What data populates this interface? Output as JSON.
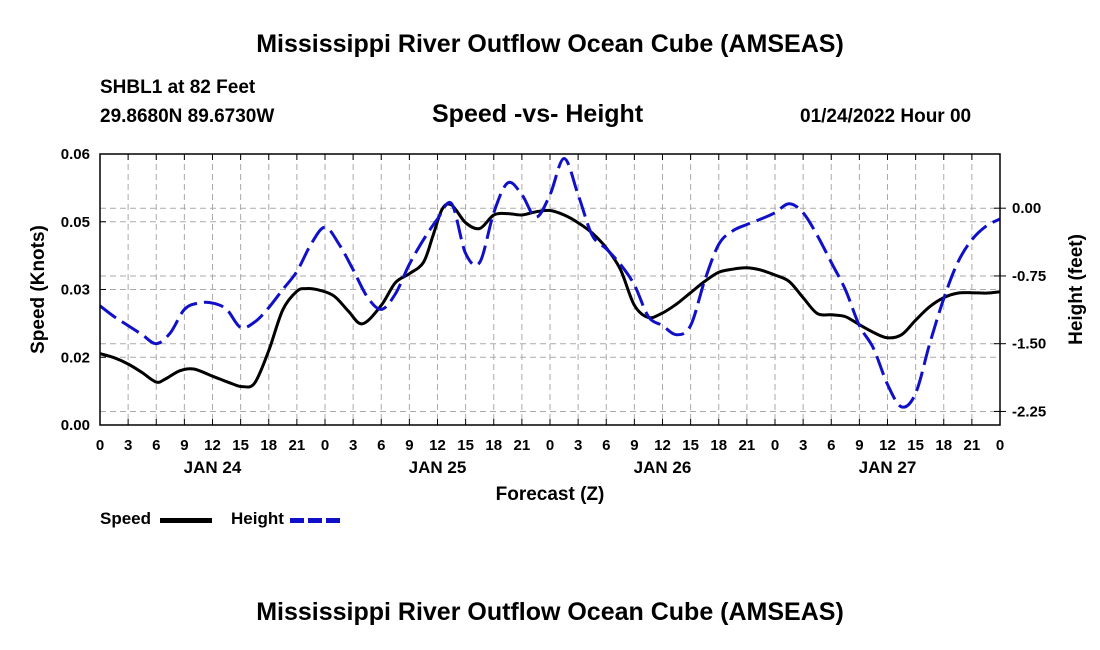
{
  "chart_data": {
    "type": "line",
    "title": "Mississippi River Outflow Ocean Cube (AMSEAS)",
    "station": "SHBL1 at 82 Feet",
    "coordinates": "29.8680N  89.6730W",
    "subtitle": "Speed -vs- Height",
    "datetime": "01/24/2022 Hour 00",
    "xlabel": "Forecast (Z)",
    "ylabel_left": "Speed (Knots)",
    "ylabel_right": "Height (feet)",
    "x_hours": [
      0,
      96
    ],
    "x_ticks": [
      "0",
      "3",
      "6",
      "9",
      "12",
      "15",
      "18",
      "21",
      "0",
      "3",
      "6",
      "9",
      "12",
      "15",
      "18",
      "21",
      "0",
      "3",
      "6",
      "9",
      "12",
      "15",
      "18",
      "21",
      "0",
      "3",
      "6",
      "9",
      "12",
      "15",
      "18",
      "21",
      "0"
    ],
    "day_labels": [
      {
        "label": "JAN 24",
        "hour": 12
      },
      {
        "label": "JAN 25",
        "hour": 36
      },
      {
        "label": "JAN 26",
        "hour": 60
      },
      {
        "label": "JAN 27",
        "hour": 84
      }
    ],
    "y_left": {
      "min": 0,
      "max": 0.06,
      "ticks": [
        "0.00",
        "0.02",
        "0.03",
        "0.05",
        "0.06"
      ]
    },
    "y_right": {
      "min": -2.4,
      "max": 0.6,
      "ticks": [
        "0.00",
        "-0.75",
        "-1.50",
        "-2.25"
      ],
      "tick_values": [
        0,
        -0.75,
        -1.5,
        -2.25
      ]
    },
    "grid": true,
    "series": [
      {
        "name": "Speed",
        "axis": "left",
        "color": "#000000",
        "style": "solid",
        "x": [
          0,
          1.5,
          3,
          4.5,
          6,
          7,
          8.5,
          10,
          12,
          14,
          15.2,
          16.5,
          18,
          19.5,
          21,
          22,
          23.5,
          25,
          26.5,
          28,
          30,
          31.5,
          33,
          34.5,
          35.5,
          36.5,
          37.5,
          39,
          40.5,
          42,
          43.5,
          45,
          46.5,
          48,
          49.5,
          51,
          52.5,
          54,
          55.5,
          57,
          58.5,
          60,
          61.5,
          63,
          64.5,
          66,
          67.5,
          69,
          70.5,
          72,
          73.5,
          75,
          76.5,
          78,
          79.5,
          81,
          82.5,
          84,
          85.5,
          87,
          88.5,
          90,
          91.5,
          93,
          94.5,
          96
        ],
        "values": [
          0.0158,
          0.0149,
          0.0135,
          0.0116,
          0.0095,
          0.0102,
          0.012,
          0.0124,
          0.0108,
          0.0092,
          0.0085,
          0.0093,
          0.0165,
          0.0255,
          0.0296,
          0.0302,
          0.0298,
          0.0285,
          0.0252,
          0.0224,
          0.0265,
          0.0315,
          0.0335,
          0.036,
          0.0418,
          0.0478,
          0.0487,
          0.0448,
          0.0435,
          0.0465,
          0.0468,
          0.0465,
          0.0472,
          0.0475,
          0.0465,
          0.0448,
          0.0425,
          0.0392,
          0.0345,
          0.0265,
          0.0238,
          0.0248,
          0.0268,
          0.0293,
          0.0318,
          0.0338,
          0.0345,
          0.0348,
          0.0343,
          0.0332,
          0.0318,
          0.0282,
          0.0247,
          0.0244,
          0.024,
          0.0222,
          0.0205,
          0.0193,
          0.02,
          0.0232,
          0.0262,
          0.0282,
          0.0292,
          0.0293,
          0.0292,
          0.0295
        ]
      },
      {
        "name": "Height",
        "axis": "right",
        "color": "#1010c8",
        "style": "dashed",
        "x": [
          0,
          1.5,
          3,
          4.5,
          6,
          7.5,
          9,
          10.5,
          12,
          13.5,
          15,
          16.5,
          18,
          19.5,
          21,
          22.5,
          24,
          25.5,
          27,
          28.5,
          30,
          31.5,
          33,
          34.5,
          36,
          37.5,
          39,
          40.5,
          42,
          43.5,
          45,
          46.5,
          48,
          49.5,
          51,
          52.5,
          54,
          55.5,
          57,
          58.5,
          60,
          61.5,
          63,
          64.5,
          66,
          67.5,
          69,
          70.5,
          72,
          73.5,
          75,
          76.5,
          78,
          79.5,
          81,
          82.5,
          84,
          85.5,
          87,
          88.5,
          90,
          91.5,
          93,
          94.5,
          96
        ],
        "values": [
          -1.08,
          -1.2,
          -1.3,
          -1.4,
          -1.5,
          -1.38,
          -1.12,
          -1.05,
          -1.05,
          -1.12,
          -1.32,
          -1.26,
          -1.1,
          -0.9,
          -0.7,
          -0.4,
          -0.21,
          -0.4,
          -0.68,
          -0.98,
          -1.12,
          -0.95,
          -0.62,
          -0.35,
          -0.12,
          0.05,
          -0.5,
          -0.6,
          -0.05,
          0.28,
          0.15,
          -0.1,
          0.15,
          0.55,
          0.15,
          -0.3,
          -0.45,
          -0.62,
          -0.85,
          -1.2,
          -1.3,
          -1.4,
          -1.3,
          -0.8,
          -0.4,
          -0.25,
          -0.18,
          -0.12,
          -0.05,
          0.05,
          -0.05,
          -0.3,
          -0.6,
          -0.9,
          -1.3,
          -1.55,
          -1.95,
          -2.2,
          -2.05,
          -1.5,
          -1.0,
          -0.6,
          -0.35,
          -0.2,
          -0.12
        ]
      }
    ]
  },
  "legend": {
    "speed_label": "Speed",
    "height_label": "Height"
  },
  "footer": {
    "title": "Mississippi River Outflow Ocean Cube (AMSEAS)"
  }
}
